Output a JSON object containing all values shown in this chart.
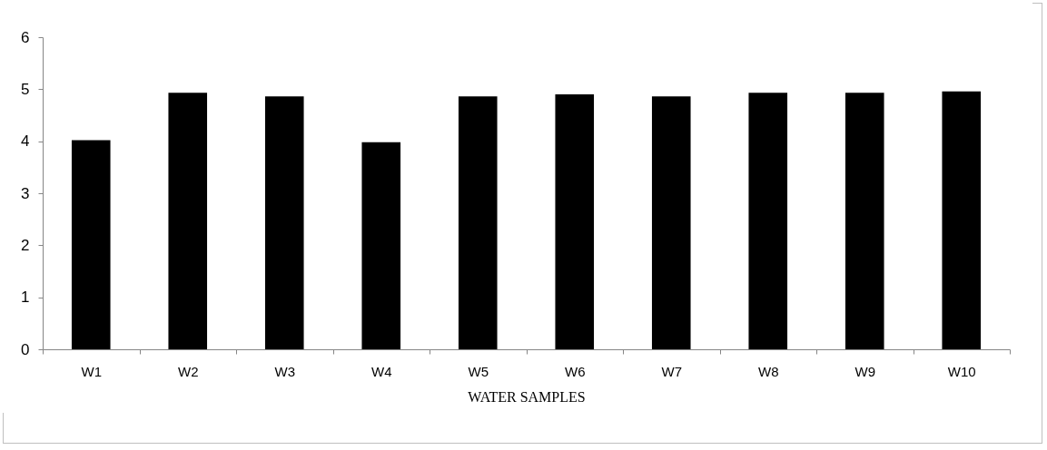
{
  "chart_data": {
    "type": "bar",
    "xlabel": "WATER SAMPLES",
    "categories": [
      "W1",
      "W2",
      "W3",
      "W4",
      "W5",
      "W6",
      "W7",
      "W8",
      "W9",
      "W10"
    ],
    "values": [
      4.02,
      4.93,
      4.86,
      3.98,
      4.86,
      4.9,
      4.86,
      4.93,
      4.93,
      4.96
    ],
    "color": "#000000",
    "ylim": [
      0,
      6
    ],
    "yticks": [
      0,
      1,
      2,
      3,
      4,
      5,
      6
    ],
    "grid": false
  }
}
